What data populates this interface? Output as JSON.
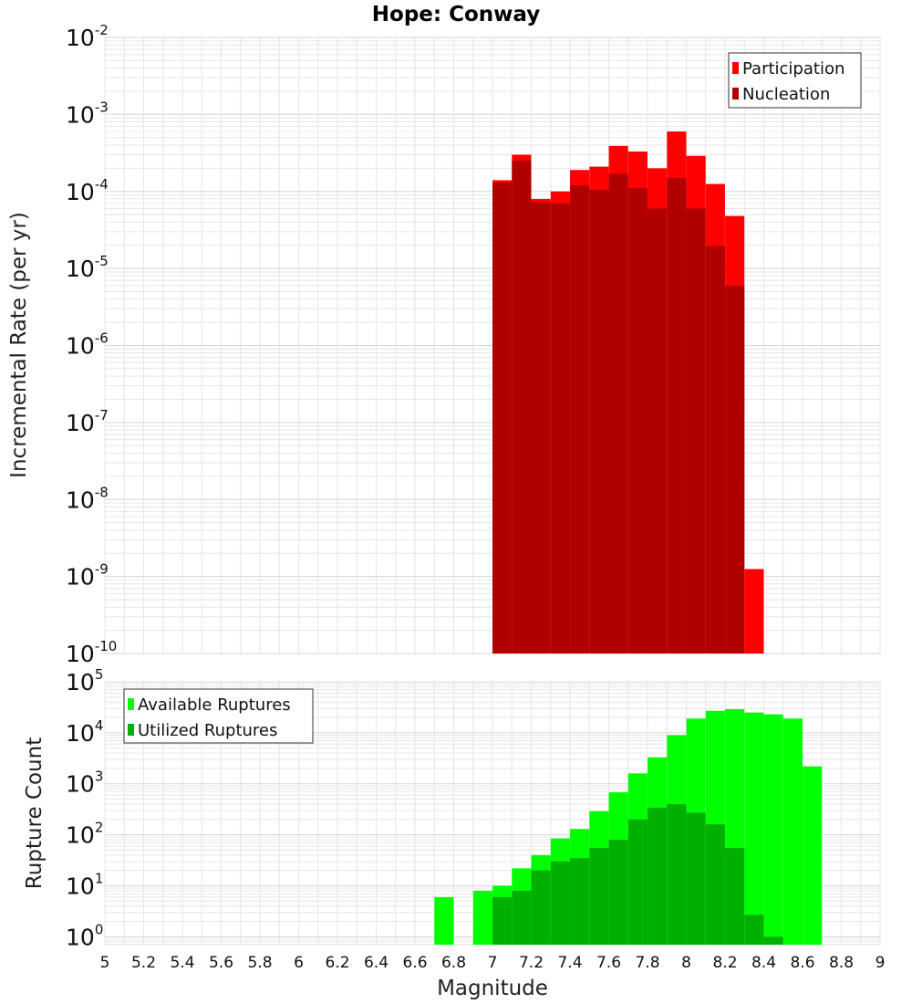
{
  "title": "Hope: Conway",
  "colors": {
    "participation": "#ff0000",
    "nucleation": "#b00000",
    "available": "#00ff00",
    "utilized": "#00b000",
    "grid": "#e6e6e6",
    "frame": "#b4b4b4"
  },
  "chart_data": [
    {
      "type": "bar",
      "panel": "top",
      "title": "Hope: Conway",
      "xlabel": "Magnitude",
      "ylabel": "Incremental Rate (per yr)",
      "xlim": [
        5,
        9
      ],
      "ylim": [
        1e-10,
        0.01
      ],
      "yscale": "log",
      "ytick_exponents": [
        -10,
        -9,
        -8,
        -7,
        -6,
        -5,
        -4,
        -3,
        -2
      ],
      "grid": true,
      "legend_position": "top-right",
      "x": [
        7.05,
        7.15,
        7.25,
        7.35,
        7.45,
        7.55,
        7.65,
        7.75,
        7.85,
        7.95,
        8.05,
        8.15,
        8.25,
        8.35
      ],
      "series": [
        {
          "name": "Participation",
          "values": [
            0.00014,
            0.0003,
            8e-05,
            0.0001,
            0.00019,
            0.00021,
            0.00039,
            0.00033,
            0.0002,
            0.0006,
            0.00029,
            0.000125,
            4.8e-05,
            1.25e-09
          ]
        },
        {
          "name": "Nucleation",
          "values": [
            0.00013,
            0.00025,
            7.2e-05,
            7e-05,
            0.00012,
            0.000105,
            0.00017,
            0.00011,
            6e-05,
            0.00015,
            6e-05,
            1.95e-05,
            6e-06,
            null
          ]
        }
      ]
    },
    {
      "type": "bar",
      "panel": "bottom",
      "xlabel": "Magnitude",
      "ylabel": "Rupture Count",
      "xlim": [
        5,
        9
      ],
      "ylim": [
        0.7,
        100000
      ],
      "yscale": "log",
      "ytick_exponents": [
        0,
        1,
        2,
        3,
        4,
        5
      ],
      "xticks": [
        "5",
        "5.2",
        "5.4",
        "5.6",
        "5.8",
        "6",
        "6.2",
        "6.4",
        "6.6",
        "6.8",
        "7",
        "7.2",
        "7.4",
        "7.6",
        "7.8",
        "8",
        "8.2",
        "8.4",
        "8.6",
        "8.8",
        "9"
      ],
      "grid": true,
      "legend_position": "top-left",
      "x": [
        6.75,
        6.85,
        6.95,
        7.05,
        7.15,
        7.25,
        7.35,
        7.45,
        7.55,
        7.65,
        7.75,
        7.85,
        7.95,
        8.05,
        8.15,
        8.25,
        8.35,
        8.45,
        8.55,
        8.65
      ],
      "series": [
        {
          "name": "Available Ruptures",
          "values": [
            6,
            null,
            8,
            10,
            22,
            40,
            85,
            130,
            290,
            680,
            1600,
            3300,
            9000,
            19000,
            27000,
            29000,
            25000,
            23000,
            19000,
            2200
          ]
        },
        {
          "name": "Utilized Ruptures",
          "values": [
            null,
            null,
            null,
            6,
            8,
            20,
            30,
            35,
            55,
            80,
            200,
            340,
            400,
            270,
            160,
            55,
            2.7,
            1.0,
            null,
            null
          ]
        }
      ]
    }
  ]
}
